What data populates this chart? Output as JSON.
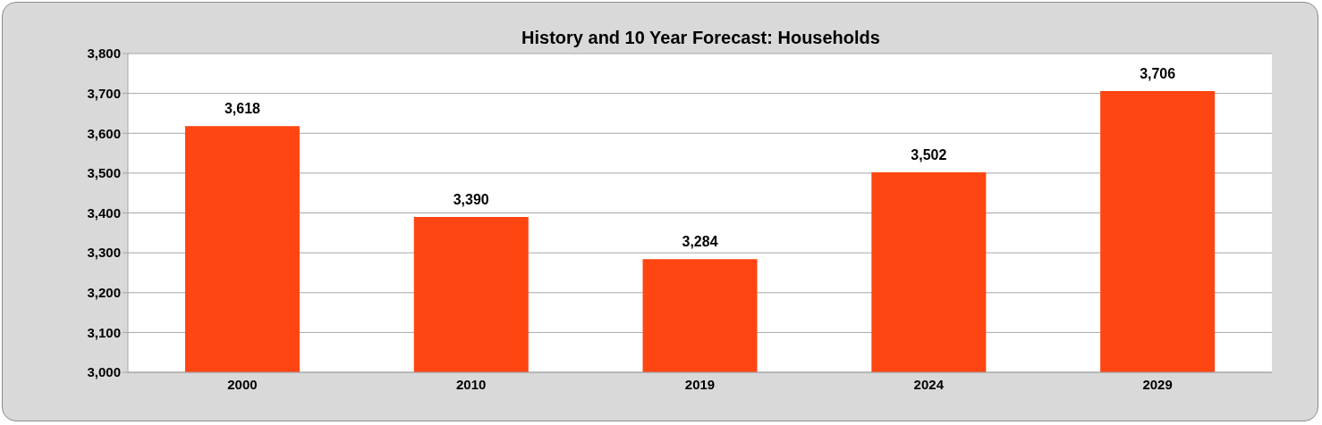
{
  "chart_data": {
    "type": "bar",
    "title": "History and 10 Year Forecast: Households",
    "categories": [
      "2000",
      "2010",
      "2019",
      "2024",
      "2029"
    ],
    "values": [
      3618,
      3390,
      3284,
      3502,
      3706
    ],
    "value_labels": [
      "3,618",
      "3,390",
      "3,284",
      "3,502",
      "3,706"
    ],
    "color": "#ff4511",
    "ylim": [
      3000,
      3800
    ],
    "yticks": [
      {
        "value": 3000,
        "label": "3,000"
      },
      {
        "value": 3100,
        "label": "3,100"
      },
      {
        "value": 3200,
        "label": "3,200"
      },
      {
        "value": 3300,
        "label": "3,300"
      },
      {
        "value": 3400,
        "label": "3,400"
      },
      {
        "value": 3500,
        "label": "3,500"
      },
      {
        "value": 3600,
        "label": "3,600"
      },
      {
        "value": 3700,
        "label": "3,700"
      },
      {
        "value": 3800,
        "label": "3,800"
      }
    ],
    "grid": "y"
  }
}
